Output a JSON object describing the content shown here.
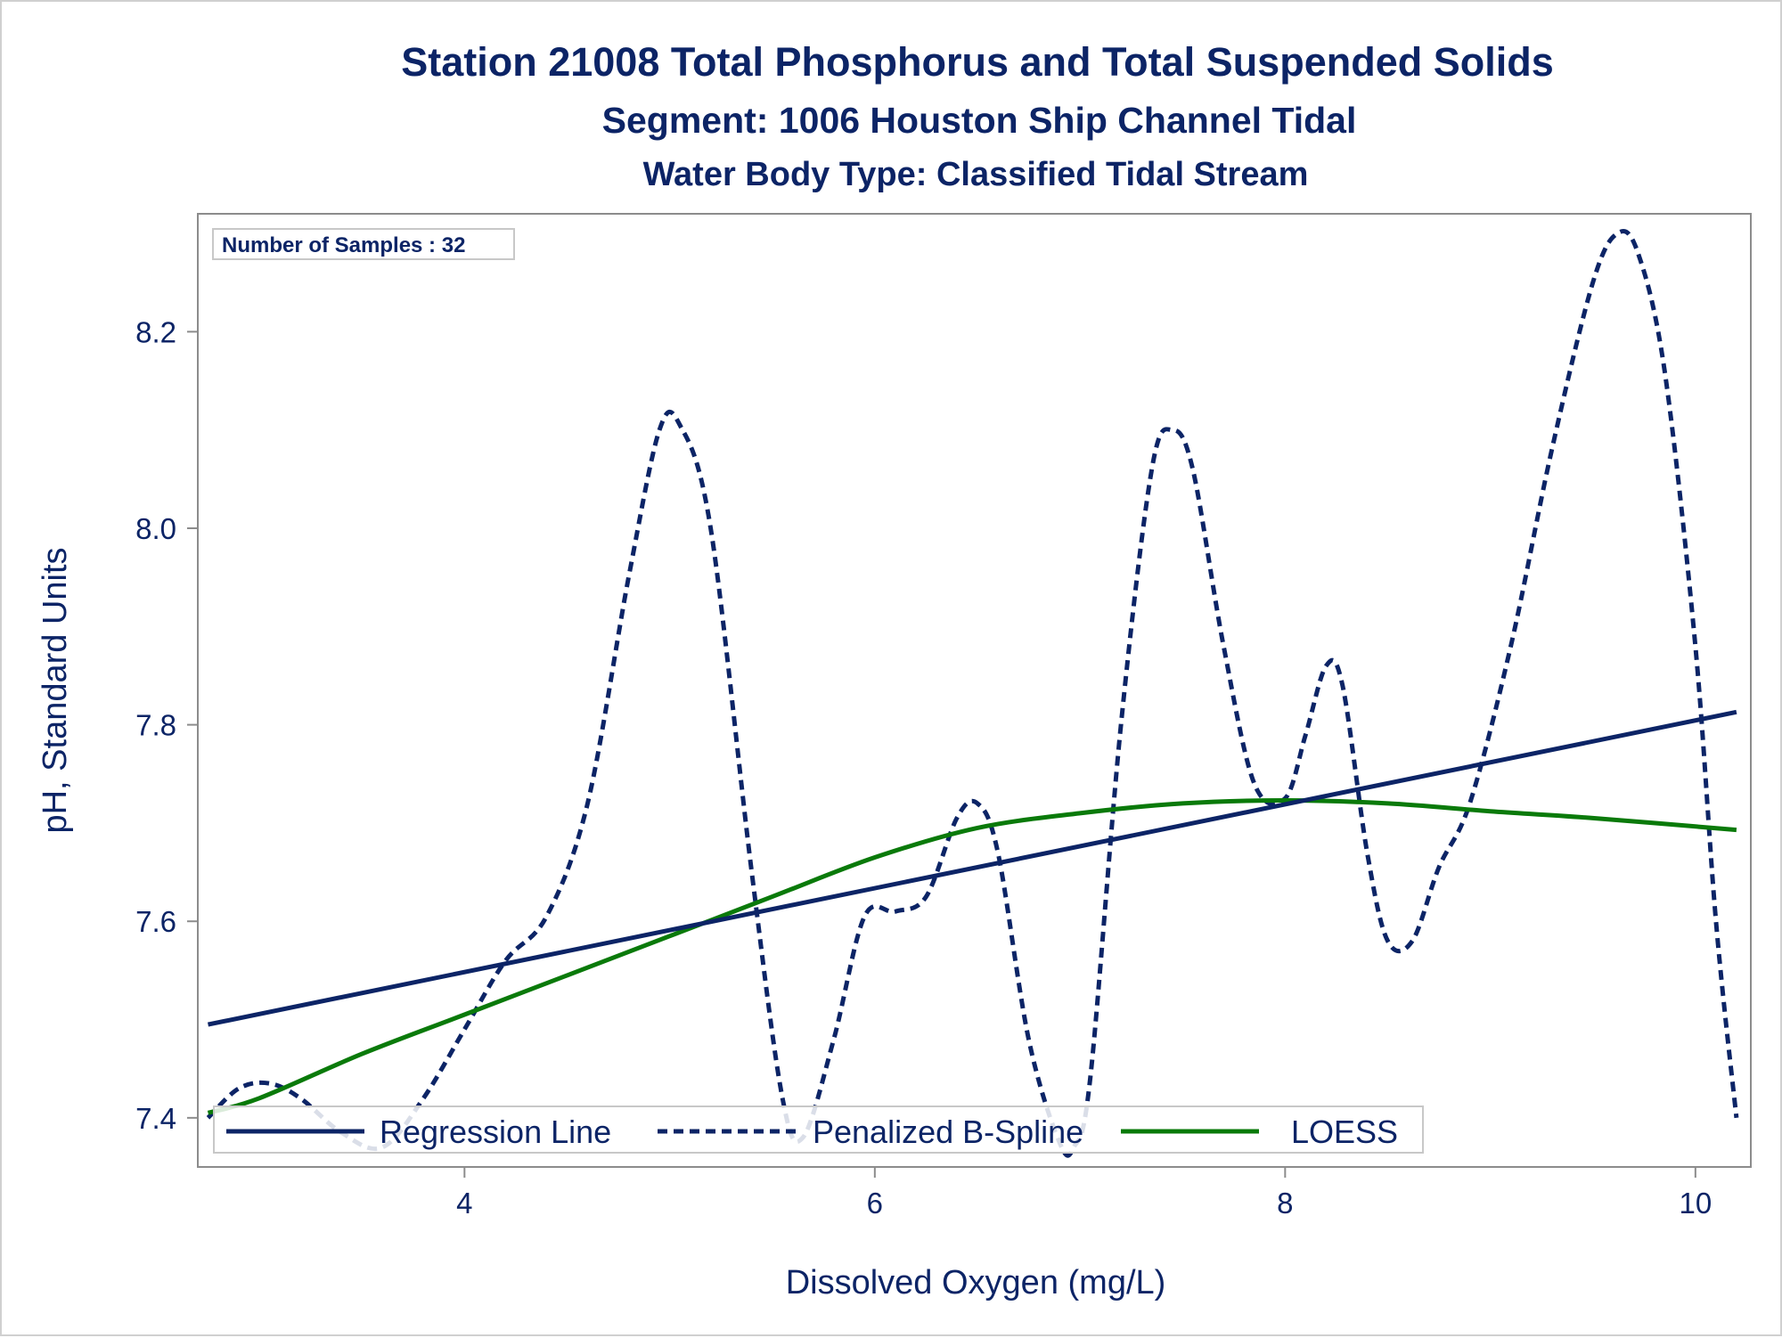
{
  "chart_data": {
    "type": "line",
    "title": "Station 21008  Total Phosphorus and Total Suspended Solids",
    "subtitle": "Segment: 1006  Houston Ship Channel Tidal",
    "subtitle2": "Water Body Type: Classified Tidal Stream",
    "xlabel": "Dissolved Oxygen (mg/L)",
    "ylabel": "pH, Standard Units",
    "xlim": [
      2.7,
      10.27
    ],
    "ylim": [
      7.35,
      8.32
    ],
    "xticks": [
      4,
      6,
      8,
      10
    ],
    "yticks": [
      7.4,
      7.6,
      7.8,
      8.0,
      8.2
    ],
    "xtick_labels": [
      "4",
      "6",
      "8",
      "10"
    ],
    "ytick_labels": [
      "7.4",
      "7.6",
      "7.8",
      "8.0",
      "8.2"
    ],
    "grid": false,
    "inset_label": "Number of Samples : 32",
    "legend_position": "bottom-inside",
    "colors": {
      "regression": "#0c2466",
      "spline": "#0c2466",
      "loess": "#0a7a0a",
      "text": "#0c2466"
    },
    "series": [
      {
        "name": "Regression Line",
        "style": "solid",
        "x": [
          2.75,
          10.2
        ],
        "y": [
          7.495,
          7.813
        ]
      },
      {
        "name": "Penalized B-Spline",
        "style": "dashed",
        "x": [
          2.75,
          2.9,
          3.05,
          3.2,
          3.4,
          3.6,
          3.8,
          4.0,
          4.2,
          4.4,
          4.6,
          4.8,
          4.95,
          5.05,
          5.2,
          5.4,
          5.55,
          5.65,
          5.8,
          5.95,
          6.1,
          6.25,
          6.4,
          6.5,
          6.6,
          6.75,
          6.9,
          6.97,
          7.05,
          7.2,
          7.35,
          7.45,
          7.55,
          7.7,
          7.85,
          8.0,
          8.1,
          8.2,
          8.28,
          8.4,
          8.5,
          8.62,
          8.75,
          8.9,
          9.1,
          9.3,
          9.5,
          9.62,
          9.72,
          9.85,
          10.0,
          10.1,
          10.2
        ],
        "y": [
          7.4,
          7.43,
          7.435,
          7.42,
          7.385,
          7.37,
          7.42,
          7.49,
          7.56,
          7.605,
          7.72,
          7.95,
          8.1,
          8.105,
          8.0,
          7.65,
          7.42,
          7.38,
          7.48,
          7.605,
          7.61,
          7.625,
          7.705,
          7.72,
          7.67,
          7.48,
          7.375,
          7.37,
          7.44,
          7.8,
          8.06,
          8.1,
          8.06,
          7.88,
          7.74,
          7.725,
          7.79,
          7.86,
          7.84,
          7.67,
          7.58,
          7.58,
          7.655,
          7.72,
          7.88,
          8.08,
          8.25,
          8.3,
          8.28,
          8.16,
          7.88,
          7.6,
          7.4
        ]
      },
      {
        "name": "LOESS",
        "style": "solid",
        "x": [
          2.75,
          3.0,
          3.5,
          4.0,
          4.5,
          5.0,
          5.5,
          6.0,
          6.5,
          7.0,
          7.5,
          8.0,
          8.5,
          9.0,
          9.5,
          10.2
        ],
        "y": [
          7.405,
          7.42,
          7.465,
          7.505,
          7.545,
          7.585,
          7.625,
          7.665,
          7.695,
          7.71,
          7.72,
          7.723,
          7.72,
          7.712,
          7.705,
          7.693
        ]
      }
    ]
  }
}
